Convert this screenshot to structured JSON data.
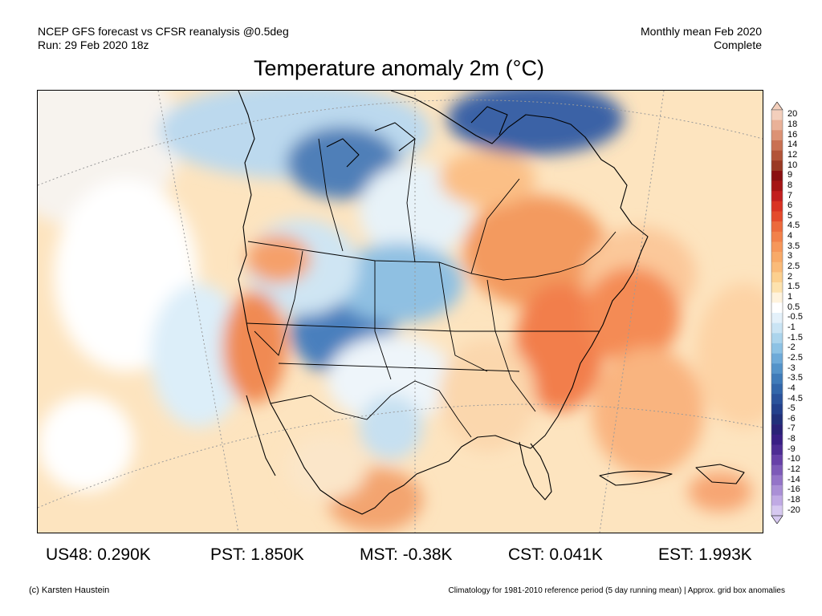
{
  "header": {
    "line1": "NCEP GFS forecast vs CFSR reanalysis @0.5deg",
    "line2": "Run: 29 Feb 2020 18z",
    "right1": "Monthly mean Feb 2020",
    "right2": "Complete"
  },
  "title": "Temperature anomaly 2m (°C)",
  "legend": {
    "labels": [
      "20",
      "18",
      "16",
      "14",
      "12",
      "10",
      "9",
      "8",
      "7",
      "6",
      "5",
      "4.5",
      "4",
      "3.5",
      "3",
      "2.5",
      "2",
      "1.5",
      "1",
      "0.5",
      "-0.5",
      "-1",
      "-1.5",
      "-2",
      "-2.5",
      "-3",
      "-3.5",
      "-4",
      "-4.5",
      "-5",
      "-6",
      "-7",
      "-8",
      "-9",
      "-10",
      "-12",
      "-14",
      "-16",
      "-18",
      "-20"
    ],
    "colors": [
      "#f3cfbc",
      "#e9b198",
      "#dc9274",
      "#c97152",
      "#b25438",
      "#9a3a24",
      "#8a0f10",
      "#a51515",
      "#c21f1f",
      "#d93323",
      "#e44b2c",
      "#ec6a3c",
      "#f2814a",
      "#f6975a",
      "#f8aa68",
      "#fabb79",
      "#fcd08f",
      "#fde2ae",
      "#fff3dd",
      "#ffffff",
      "#e4f1fa",
      "#cae4f4",
      "#abd4ec",
      "#8dc2e4",
      "#6eaad8",
      "#5493c9",
      "#3f7bb9",
      "#3266aa",
      "#2a529b",
      "#23408c",
      "#21307a",
      "#2a2277",
      "#3a1f85",
      "#4e2d94",
      "#6741a8",
      "#7d5ab8",
      "#9474c8",
      "#aa8fd6",
      "#c0aae4",
      "#d6c8f0"
    ]
  },
  "stats": [
    {
      "label": "US48:",
      "value": "0.290K"
    },
    {
      "label": "PST:",
      "value": "1.850K"
    },
    {
      "label": "MST:",
      "value": "-0.38K"
    },
    {
      "label": "CST:",
      "value": "0.041K"
    },
    {
      "label": "EST:",
      "value": "1.993K"
    }
  ],
  "footer": {
    "left": "(c) Karsten Haustein",
    "right": "Climatology for 1981-2010 reference period (5 day running mean) | Approx. grid box anomalies"
  }
}
